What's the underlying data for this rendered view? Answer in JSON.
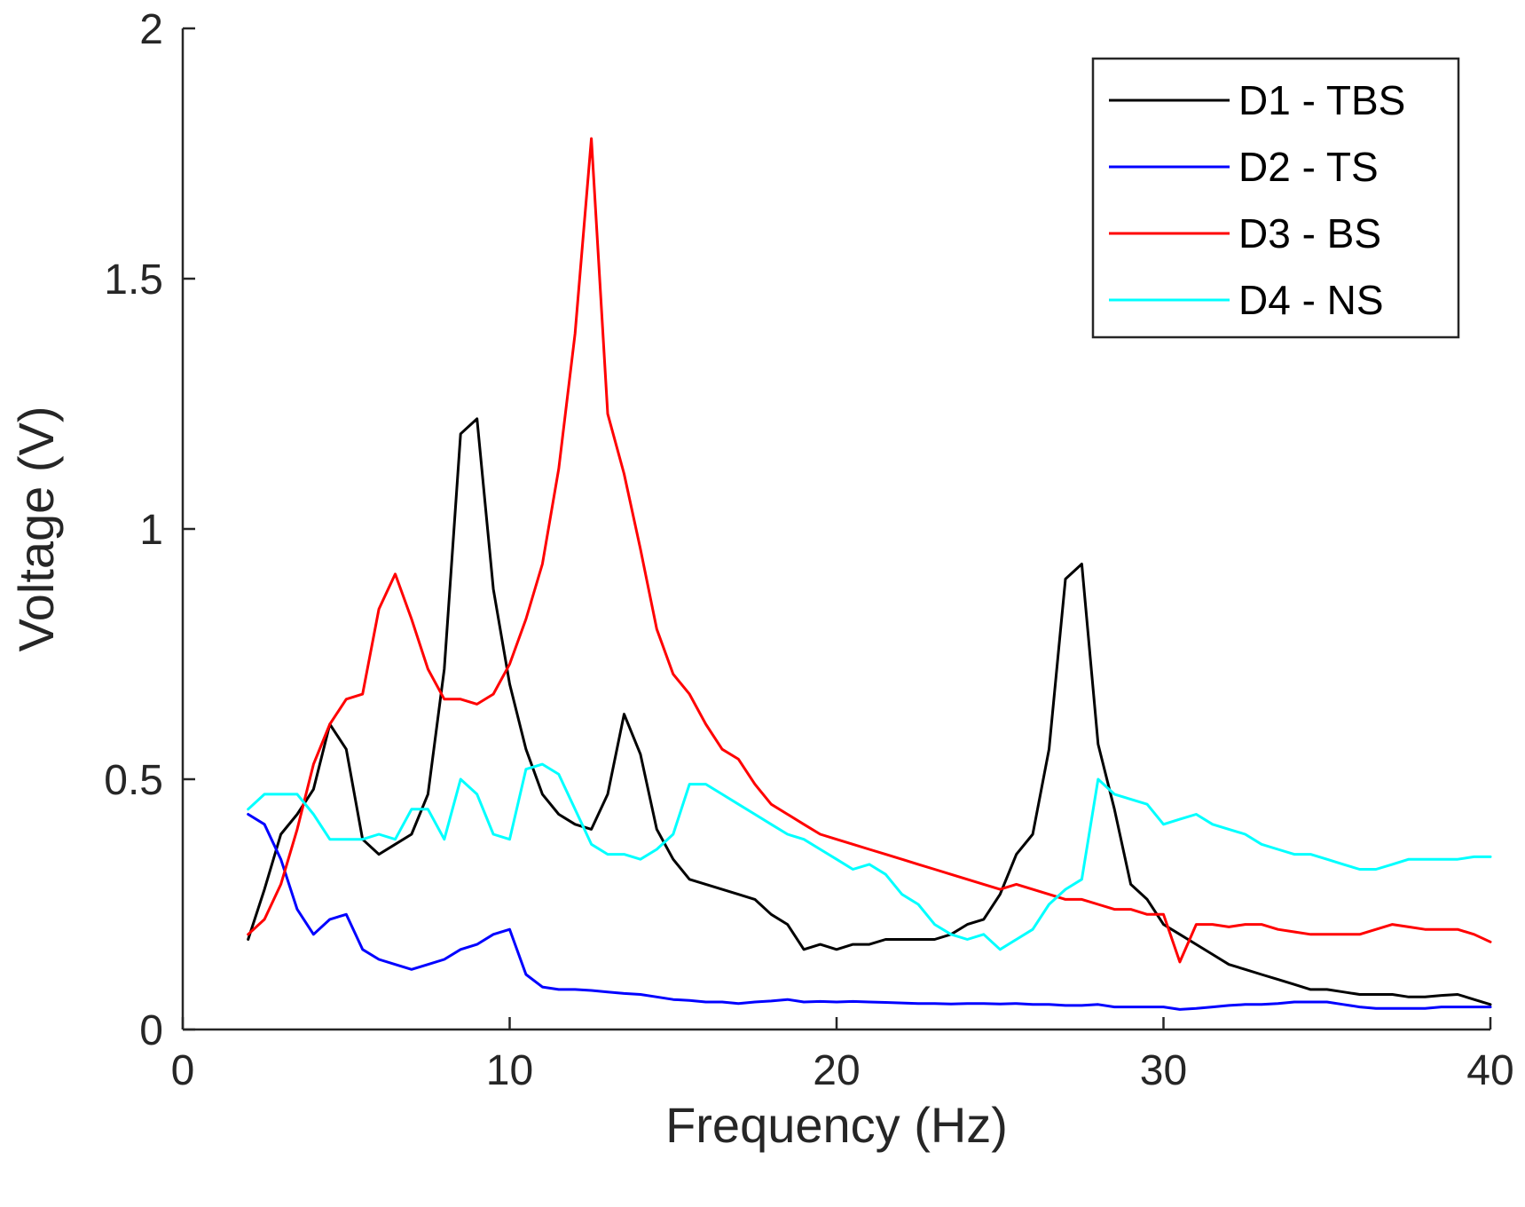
{
  "chart_data": {
    "type": "line",
    "xlabel": "Frequency (Hz)",
    "ylabel": "Voltage (V)",
    "xlim": [
      0,
      40
    ],
    "ylim": [
      0,
      2
    ],
    "xticks": [
      0,
      10,
      20,
      30,
      40
    ],
    "xtick_labels": [
      "0",
      "10",
      "20",
      "30",
      "40"
    ],
    "yticks": [
      0,
      0.5,
      1,
      1.5,
      2
    ],
    "ytick_labels": [
      "0",
      "0.5",
      "1",
      "1.5",
      "2"
    ],
    "grid": false,
    "legend_position": "top-right",
    "x": [
      2,
      2.5,
      3,
      3.5,
      4,
      4.5,
      5,
      5.5,
      6,
      6.5,
      7,
      7.5,
      8,
      8.5,
      9,
      9.5,
      10,
      10.5,
      11,
      11.5,
      12,
      12.5,
      13,
      13.5,
      14,
      14.5,
      15,
      15.5,
      16,
      16.5,
      17,
      17.5,
      18,
      18.5,
      19,
      19.5,
      20,
      20.5,
      21,
      21.5,
      22,
      22.5,
      23,
      23.5,
      24,
      24.5,
      25,
      25.5,
      26,
      26.5,
      27,
      27.5,
      28,
      28.5,
      29,
      29.5,
      30,
      30.5,
      31,
      31.5,
      32,
      32.5,
      33,
      33.5,
      34,
      34.5,
      35,
      35.5,
      36,
      36.5,
      37,
      37.5,
      38,
      38.5,
      39,
      39.5,
      40
    ],
    "series": [
      {
        "name": "D1 - TBS",
        "color": "#000000",
        "values": [
          0.18,
          0.28,
          0.39,
          0.43,
          0.48,
          0.61,
          0.56,
          0.38,
          0.35,
          0.37,
          0.39,
          0.47,
          0.72,
          1.19,
          1.22,
          0.88,
          0.69,
          0.56,
          0.47,
          0.43,
          0.41,
          0.4,
          0.47,
          0.63,
          0.55,
          0.4,
          0.34,
          0.3,
          0.29,
          0.28,
          0.27,
          0.26,
          0.23,
          0.21,
          0.16,
          0.17,
          0.16,
          0.17,
          0.17,
          0.18,
          0.18,
          0.18,
          0.18,
          0.19,
          0.21,
          0.22,
          0.27,
          0.35,
          0.39,
          0.56,
          0.9,
          0.93,
          0.57,
          0.44,
          0.29,
          0.26,
          0.21,
          0.19,
          0.17,
          0.15,
          0.13,
          0.12,
          0.11,
          0.1,
          0.09,
          0.08,
          0.08,
          0.075,
          0.07,
          0.07,
          0.07,
          0.065,
          0.065,
          0.068,
          0.07,
          0.06,
          0.05
        ]
      },
      {
        "name": "D2 - TS",
        "color": "#0000ff",
        "values": [
          0.43,
          0.41,
          0.34,
          0.24,
          0.19,
          0.22,
          0.23,
          0.16,
          0.14,
          0.13,
          0.12,
          0.13,
          0.14,
          0.16,
          0.17,
          0.19,
          0.2,
          0.11,
          0.085,
          0.08,
          0.08,
          0.078,
          0.075,
          0.072,
          0.07,
          0.065,
          0.06,
          0.058,
          0.055,
          0.055,
          0.052,
          0.055,
          0.057,
          0.06,
          0.055,
          0.056,
          0.055,
          0.056,
          0.055,
          0.054,
          0.053,
          0.052,
          0.052,
          0.051,
          0.052,
          0.052,
          0.051,
          0.052,
          0.05,
          0.05,
          0.048,
          0.048,
          0.05,
          0.045,
          0.045,
          0.045,
          0.045,
          0.04,
          0.042,
          0.045,
          0.048,
          0.05,
          0.05,
          0.052,
          0.055,
          0.055,
          0.055,
          0.05,
          0.045,
          0.042,
          0.042,
          0.042,
          0.042,
          0.045,
          0.045,
          0.045,
          0.045
        ]
      },
      {
        "name": "D3 - BS",
        "color": "#ff0000",
        "values": [
          0.19,
          0.22,
          0.29,
          0.4,
          0.53,
          0.61,
          0.66,
          0.67,
          0.84,
          0.91,
          0.82,
          0.72,
          0.66,
          0.66,
          0.65,
          0.67,
          0.73,
          0.82,
          0.93,
          1.12,
          1.39,
          1.78,
          1.23,
          1.11,
          0.96,
          0.8,
          0.71,
          0.67,
          0.61,
          0.56,
          0.54,
          0.49,
          0.45,
          0.43,
          0.41,
          0.39,
          0.38,
          0.37,
          0.36,
          0.35,
          0.34,
          0.33,
          0.32,
          0.31,
          0.3,
          0.29,
          0.28,
          0.29,
          0.28,
          0.27,
          0.26,
          0.26,
          0.25,
          0.24,
          0.24,
          0.23,
          0.23,
          0.135,
          0.21,
          0.21,
          0.205,
          0.21,
          0.21,
          0.2,
          0.195,
          0.19,
          0.19,
          0.19,
          0.19,
          0.2,
          0.21,
          0.205,
          0.2,
          0.2,
          0.2,
          0.19,
          0.175
        ]
      },
      {
        "name": "D4 - NS",
        "color": "#00ffff",
        "values": [
          0.44,
          0.47,
          0.47,
          0.47,
          0.43,
          0.38,
          0.38,
          0.38,
          0.39,
          0.38,
          0.44,
          0.44,
          0.38,
          0.5,
          0.47,
          0.39,
          0.38,
          0.52,
          0.53,
          0.51,
          0.44,
          0.37,
          0.35,
          0.35,
          0.34,
          0.36,
          0.39,
          0.49,
          0.49,
          0.47,
          0.45,
          0.43,
          0.41,
          0.39,
          0.38,
          0.36,
          0.34,
          0.32,
          0.33,
          0.31,
          0.27,
          0.25,
          0.21,
          0.19,
          0.18,
          0.19,
          0.16,
          0.18,
          0.2,
          0.25,
          0.28,
          0.3,
          0.5,
          0.47,
          0.46,
          0.45,
          0.41,
          0.42,
          0.43,
          0.41,
          0.4,
          0.39,
          0.37,
          0.36,
          0.35,
          0.35,
          0.34,
          0.33,
          0.32,
          0.32,
          0.33,
          0.34,
          0.34,
          0.34,
          0.34,
          0.345,
          0.345
        ]
      }
    ]
  }
}
